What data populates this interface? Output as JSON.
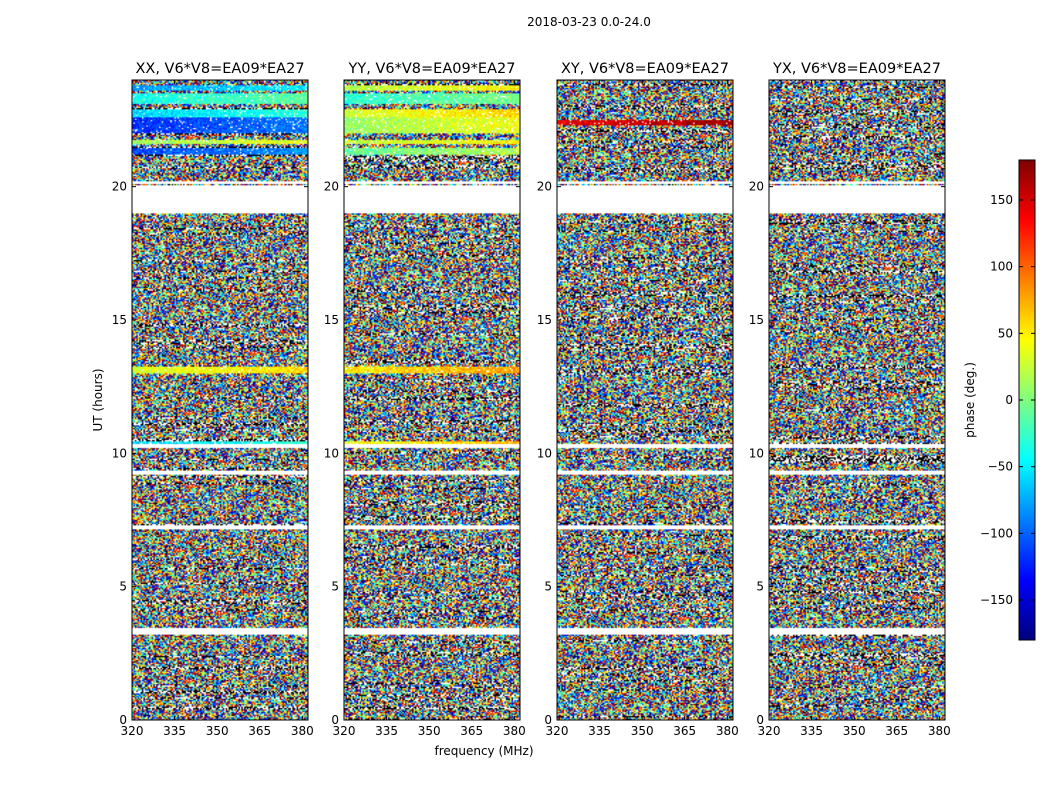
{
  "figure_title": "2018-03-23 0.0-24.0",
  "chart_data": {
    "type": "heatmap",
    "shared_xlabel": "frequency (MHz)",
    "shared_ylabel": "UT (hours)",
    "xlim": [
      320,
      382
    ],
    "xticks": [
      320,
      335,
      350,
      365,
      380
    ],
    "ylim": [
      0,
      24
    ],
    "yticks": [
      0,
      5,
      10,
      15,
      20
    ],
    "value_label": "phase (deg.)",
    "value_range": [
      -180,
      180
    ],
    "colorbar_ticks": [
      -150,
      -100,
      -50,
      0,
      50,
      100,
      150
    ],
    "colormap": [
      "#00007f",
      "#0000ff",
      "#007fff",
      "#00ffff",
      "#7fff7f",
      "#ffff00",
      "#ff7f00",
      "#ff0000",
      "#7f0000"
    ],
    "flagged_ut_ranges": [
      [
        3.2,
        3.45
      ],
      [
        7.15,
        7.3
      ],
      [
        9.2,
        9.35
      ],
      [
        10.2,
        10.35
      ],
      [
        19.0,
        20.05
      ],
      [
        20.1,
        20.2
      ]
    ],
    "panels": [
      {
        "title": "XX, V6*V8=EA09*EA27",
        "coherent_bands": [
          [
            10.3,
            10.45,
            -60
          ],
          [
            13.0,
            13.25,
            30
          ],
          [
            21.2,
            21.45,
            -110
          ],
          [
            21.6,
            21.75,
            10
          ],
          [
            22.0,
            22.6,
            -120
          ],
          [
            22.6,
            22.9,
            -60
          ],
          [
            23.1,
            23.5,
            -40
          ],
          [
            23.6,
            23.8,
            -80
          ]
        ]
      },
      {
        "title": "YY, V6*V8=EA09*EA27",
        "coherent_bands": [
          [
            10.3,
            10.45,
            40
          ],
          [
            13.0,
            13.25,
            50
          ],
          [
            21.2,
            21.45,
            -10
          ],
          [
            21.6,
            21.75,
            20
          ],
          [
            22.0,
            22.6,
            10
          ],
          [
            22.6,
            22.9,
            30
          ],
          [
            23.1,
            23.5,
            -30
          ],
          [
            23.6,
            23.8,
            20
          ]
        ]
      },
      {
        "title": "XY, V6*V8=EA09*EA27",
        "coherent_bands": [
          [
            22.3,
            22.5,
            140
          ]
        ]
      },
      {
        "title": "YX, V6*V8=EA09*EA27",
        "coherent_bands": []
      }
    ]
  }
}
